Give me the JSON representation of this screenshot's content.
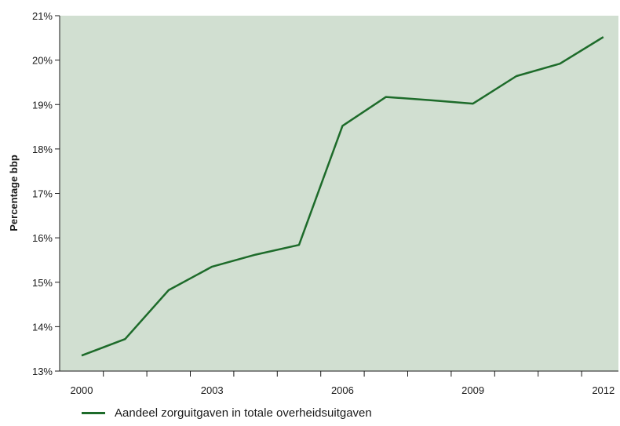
{
  "chart_data": {
    "type": "line",
    "ylabel": "Percentage bbp",
    "ylim": [
      13,
      21
    ],
    "yticks": [
      "13%",
      "14%",
      "15%",
      "16%",
      "17%",
      "18%",
      "19%",
      "20%",
      "21%"
    ],
    "xlim": [
      2000,
      2012
    ],
    "xticks": [
      "2000",
      "2003",
      "2006",
      "2009",
      "2012"
    ],
    "grid": false,
    "background": "#d1dfd1",
    "series": [
      {
        "name": "Aandeel zorguitgaven in totale overheidsuitgaven",
        "color": "#1d6b2a",
        "x": [
          2000,
          2001,
          2002,
          2003,
          2004,
          2005,
          2006,
          2007,
          2008,
          2009,
          2010,
          2011,
          2012
        ],
        "values": [
          13.35,
          13.72,
          14.82,
          15.35,
          15.62,
          15.84,
          18.52,
          19.17,
          19.1,
          19.02,
          19.64,
          19.92,
          20.52
        ]
      }
    ],
    "legend_position": "bottom-left"
  }
}
